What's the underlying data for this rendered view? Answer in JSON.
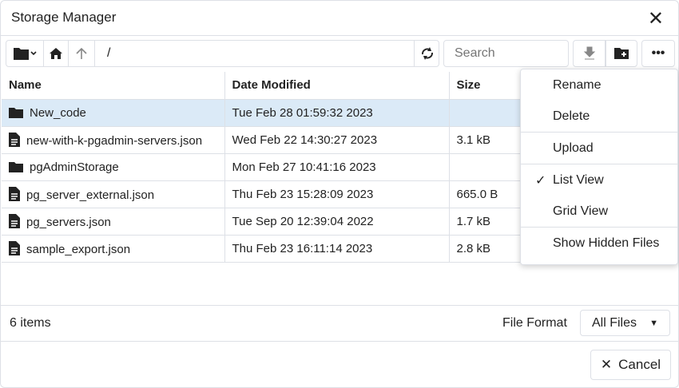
{
  "title": "Storage Manager",
  "toolbar": {
    "path": "/",
    "search_placeholder": "Search"
  },
  "columns": [
    "Name",
    "Date Modified",
    "Size"
  ],
  "rows": [
    {
      "name": "New_code",
      "type": "folder",
      "date": "Tue Feb 28 01:59:32 2023",
      "size": "",
      "selected": true
    },
    {
      "name": "new-with-k-pgadmin-servers.json",
      "type": "file",
      "date": "Wed Feb 22 14:30:27 2023",
      "size": "3.1 kB"
    },
    {
      "name": "pgAdminStorage",
      "type": "folder",
      "date": "Mon Feb 27 10:41:16 2023",
      "size": ""
    },
    {
      "name": "pg_server_external.json",
      "type": "file",
      "date": "Thu Feb 23 15:28:09 2023",
      "size": "665.0 B"
    },
    {
      "name": "pg_servers.json",
      "type": "file",
      "date": "Tue Sep 20 12:39:04 2022",
      "size": "1.7 kB"
    },
    {
      "name": "sample_export.json",
      "type": "file",
      "date": "Thu Feb 23 16:11:14 2023",
      "size": "2.8 kB"
    }
  ],
  "menu": {
    "rename": "Rename",
    "delete": "Delete",
    "upload": "Upload",
    "list_view": "List View",
    "grid_view": "Grid View",
    "show_hidden": "Show Hidden Files",
    "checked": "List View"
  },
  "footer": {
    "count": "6 items",
    "file_format_label": "File Format",
    "file_format_value": "All Files",
    "cancel": "Cancel"
  },
  "colors": {
    "selected_row": "#dbeaf7",
    "border": "#dde0e6"
  }
}
